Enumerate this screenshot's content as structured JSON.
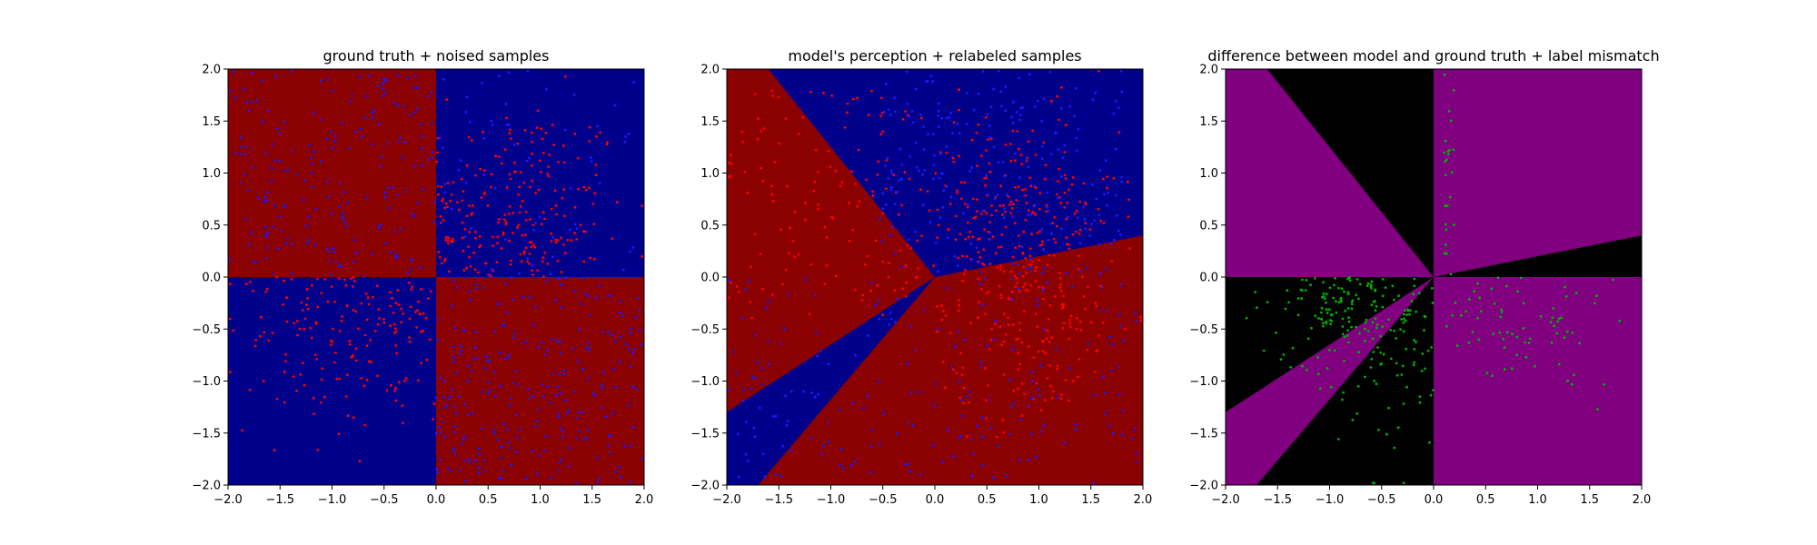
{
  "chart_data": [
    {
      "type": "scatter",
      "title": "ground truth + noised samples",
      "xlim": [
        -2.0,
        2.0
      ],
      "ylim": [
        -2.0,
        2.0
      ],
      "xticks": [
        "−2.0",
        "−1.5",
        "−1.0",
        "−0.5",
        "0.0",
        "0.5",
        "1.0",
        "1.5",
        "2.0"
      ],
      "yticks": [
        "−2.0",
        "−1.5",
        "−1.0",
        "−0.5",
        "0.0",
        "0.5",
        "1.0",
        "1.5",
        "2.0"
      ],
      "xtick_values": [
        -2.0,
        -1.5,
        -1.0,
        -0.5,
        0.0,
        0.5,
        1.0,
        1.5,
        2.0
      ],
      "ytick_values": [
        -2.0,
        -1.5,
        -1.0,
        -0.5,
        0.0,
        0.5,
        1.0,
        1.5,
        2.0
      ],
      "background": "quadrant sign(x*y): x*y>0 blue (#00008b), x*y<0 red (#8b0000)",
      "series": [
        {
          "color": "#ff0000",
          "region": "x*y>0 (blue background)",
          "count": 320
        },
        {
          "color": "#0000ff",
          "region": "x*y<0 (red background)",
          "count": 320
        }
      ],
      "grid": false
    },
    {
      "type": "scatter",
      "title": "model's perception + relabeled samples",
      "xlim": [
        -2.0,
        2.0
      ],
      "ylim": [
        -2.0,
        2.0
      ],
      "xticks": [
        "−2.0",
        "−1.5",
        "−1.0",
        "−0.5",
        "0.0",
        "0.5",
        "1.0",
        "1.5",
        "2.0"
      ],
      "yticks": [
        "−2.0",
        "−1.5",
        "−1.0",
        "−0.5",
        "0.0",
        "0.5",
        "1.0",
        "1.5",
        "2.0"
      ],
      "xtick_values": [
        -2.0,
        -1.5,
        -1.0,
        -0.5,
        0.0,
        0.5,
        1.0,
        1.5,
        2.0
      ],
      "ytick_values": [
        -2.0,
        -1.5,
        -1.0,
        -0.5,
        0.0,
        0.5,
        1.0,
        1.5,
        2.0
      ],
      "background": "piecewise-linear rays from origin: blue wedge top (between y=-1.4x and y=1.0x), red wedge left, blue sliver lower-left, red wedge lower-right",
      "series": [
        {
          "color": "#ff0000",
          "count": 360
        },
        {
          "color": "#0000ff",
          "count": 360
        }
      ],
      "grid": false
    },
    {
      "type": "scatter",
      "title": "difference between model and ground truth + label mismatch",
      "xlim": [
        -2.0,
        2.0
      ],
      "ylim": [
        -2.0,
        2.0
      ],
      "xticks": [
        "−2.0",
        "−1.5",
        "−1.0",
        "−0.5",
        "0.0",
        "0.5",
        "1.0",
        "1.5",
        "2.0"
      ],
      "yticks": [
        "−2.0",
        "−1.5",
        "−1.0",
        "−0.5",
        "0.0",
        "0.5",
        "1.0",
        "1.5",
        "2.0"
      ],
      "xtick_values": [
        -2.0,
        -1.5,
        -1.0,
        -0.5,
        0.0,
        0.5,
        1.0,
        1.5,
        2.0
      ],
      "ytick_values": [
        -2.0,
        -1.5,
        -1.0,
        -0.5,
        0.0,
        0.5,
        1.0,
        1.5,
        2.0
      ],
      "background": "purple (#800080) where model and ground truth agree, black (#000000) where they differ",
      "series": [
        {
          "color": "#00aa00",
          "count": 260
        }
      ],
      "grid": false
    }
  ],
  "colors": {
    "dark_blue": "#00008b",
    "dark_red": "#8b0000",
    "purple": "#800080",
    "black": "#000000",
    "point_red": "#ff0000",
    "point_blue": "#1a1aff",
    "point_green": "#00b000"
  }
}
